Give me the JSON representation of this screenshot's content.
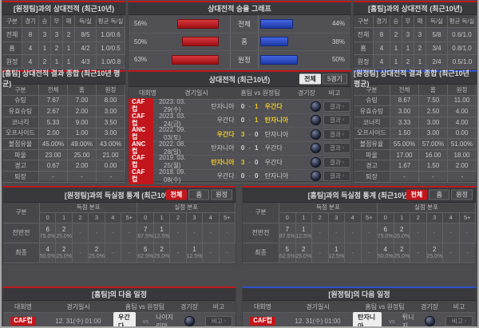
{
  "colors": {
    "red": "#c0181e",
    "blue": "#2f52cc",
    "yellow": "#e9c427",
    "badge_red": "#c3161c"
  },
  "h2h_home": {
    "title": "[원정팀]과의 상대전적 (최근10년)",
    "headers": [
      "구분",
      "경기",
      "승",
      "무",
      "패",
      "득/실",
      "평균 득/실"
    ],
    "rows": [
      {
        "label": "전체",
        "cells": [
          "8",
          "3",
          "3",
          "2",
          "8/5",
          "1.0/0.6"
        ]
      },
      {
        "label": "홈",
        "cells": [
          "4",
          "1",
          "2",
          "1",
          "4/2",
          "1.0/0.5"
        ]
      },
      {
        "label": "원정",
        "cells": [
          "4",
          "2",
          "1",
          "1",
          "4/3",
          "1.0/0.8"
        ]
      }
    ]
  },
  "winrate_graph": {
    "title": "상대전적 승율 그래프",
    "chart": {
      "type": "bar",
      "categories": [
        "전체",
        "홈",
        "원정"
      ],
      "series": [
        {
          "name": "home-red",
          "color": "#c0181e",
          "values": [
            56,
            50,
            63
          ]
        },
        {
          "name": "away-blue",
          "color": "#2f52cc",
          "values": [
            44,
            38,
            50
          ]
        }
      ],
      "unit": "%"
    },
    "rows": [
      {
        "label": "전체",
        "left": "56%",
        "right": "44%"
      },
      {
        "label": "홈",
        "left": "50%",
        "right": "38%"
      },
      {
        "label": "원정",
        "left": "63%",
        "right": "50%"
      }
    ]
  },
  "h2h_away": {
    "title": "[홈팀]과의 상대전적 (최근10년)",
    "headers": [
      "구분",
      "경기",
      "승",
      "무",
      "패",
      "득/실",
      "평균 득/실"
    ],
    "rows": [
      {
        "label": "전체",
        "cells": [
          "8",
          "2",
          "3",
          "3",
          "5/8",
          "0.6/1.0"
        ]
      },
      {
        "label": "홈",
        "cells": [
          "4",
          "1",
          "1",
          "2",
          "3/4",
          "0.8/1.0"
        ]
      },
      {
        "label": "원정",
        "cells": [
          "4",
          "1",
          "2",
          "1",
          "2/4",
          "0.5/1.0"
        ]
      }
    ]
  },
  "summary_home": {
    "title": "[홈팀] 상대전적 결과 종합 (최근10년 평균)",
    "headers": [
      "구분",
      "전체",
      "홈",
      "원정"
    ],
    "rows": [
      {
        "label": "슈팅",
        "cells": [
          "7.67",
          "7.00",
          "8.00"
        ]
      },
      {
        "label": "유효슈팅",
        "cells": [
          "2.67",
          "2.00",
          "3.00"
        ]
      },
      {
        "label": "코너킥",
        "cells": [
          "5.33",
          "9.00",
          "3.50"
        ]
      },
      {
        "label": "오프사이드",
        "cells": [
          "2.00",
          "1.00",
          "3.00"
        ]
      },
      {
        "label": "볼점유율",
        "cells": [
          "45.00%",
          "49.00%",
          "43.00%"
        ]
      },
      {
        "label": "파울",
        "cells": [
          "23.00",
          "25.00",
          "21.00"
        ]
      },
      {
        "label": "경고",
        "cells": [
          "0.67",
          "2.00",
          "0.00"
        ]
      },
      {
        "label": "퇴장",
        "cells": [
          "-",
          "-",
          "-"
        ]
      }
    ]
  },
  "h2h_matches": {
    "title": "상대전적 (최근10년)",
    "tabs": [
      "전체",
      "5경기"
    ],
    "headers": [
      "대회명",
      "경기일시",
      "홈팀 vs 원정팀",
      "경기장",
      "비고"
    ],
    "result_button": "결과",
    "rows": [
      {
        "league": "CAF컵",
        "date": "2023. 03. 29(수)",
        "home": "탄자니아",
        "score_home": "0",
        "score_away": "1",
        "away": "우간다",
        "hl_home": false,
        "hl_away": true
      },
      {
        "league": "CAF컵",
        "date": "2023. 03. 24(금)",
        "home": "우간다",
        "score_home": "0",
        "score_away": "1",
        "away": "탄자니아",
        "hl_home": false,
        "hl_away": true
      },
      {
        "league": "ANC컵",
        "date": "2022. 09. 03(토)",
        "home": "우간다",
        "score_home": "3",
        "score_away": "0",
        "away": "탄자니아",
        "hl_home": true,
        "hl_away": false
      },
      {
        "league": "ANC컵",
        "date": "2022. 08. 28(일)",
        "home": "탄자니아",
        "score_home": "0",
        "score_away": "1",
        "away": "우간다",
        "hl_home": false,
        "hl_away": false
      },
      {
        "league": "CAF컵",
        "date": "2019. 03. 25(월)",
        "home": "탄자니아",
        "score_home": "3",
        "score_away": "0",
        "away": "우간다",
        "hl_home": true,
        "hl_away": false
      },
      {
        "league": "CAF컵",
        "date": "2018. 09. 08(수)",
        "home": "우간다",
        "score_home": "0",
        "score_away": "0",
        "away": "탄자니아",
        "hl_home": false,
        "hl_away": false
      }
    ]
  },
  "summary_away": {
    "title": "[원정팀] 상대전적 결과 종합 (최근10년 평균)",
    "headers": [
      "구분",
      "전체",
      "홈",
      "원정"
    ],
    "rows": [
      {
        "label": "슈팅",
        "cells": [
          "8.67",
          "7.50",
          "11.00"
        ]
      },
      {
        "label": "유효슈팅",
        "cells": [
          "3.00",
          "2.50",
          "4.00"
        ]
      },
      {
        "label": "코너킥",
        "cells": [
          "3.33",
          "3.00",
          "4.00"
        ]
      },
      {
        "label": "오프사이드",
        "cells": [
          "1.50",
          "3.00",
          "0.00"
        ]
      },
      {
        "label": "볼점유율",
        "cells": [
          "55.00%",
          "57.00%",
          "51.00%"
        ]
      },
      {
        "label": "파울",
        "cells": [
          "17.00",
          "16.00",
          "18.00"
        ]
      },
      {
        "label": "경고",
        "cells": [
          "1.67",
          "1.50",
          "2.00"
        ]
      },
      {
        "label": "퇴장",
        "cells": [
          "-",
          "-",
          "-"
        ]
      }
    ]
  },
  "goals_home": {
    "title": "[원정팀]과의 득실점 통계 (최근10년)",
    "tabs": [
      "전체",
      "홈",
      "원정"
    ],
    "row_header": "구분",
    "col_groups": [
      "득점 분포",
      "실점 분포"
    ],
    "bins": [
      "0",
      "1",
      "2",
      "3",
      "4",
      "5+"
    ],
    "rows": [
      {
        "label": "전반전",
        "scored": [
          {
            "n": "6",
            "p": "75.0%"
          },
          {
            "n": "2",
            "p": "25.0%"
          },
          null,
          null,
          null,
          null
        ],
        "conceded": [
          {
            "n": "7",
            "p": "87.5%"
          },
          {
            "n": "1",
            "p": "12.5%"
          },
          null,
          null,
          null,
          null
        ]
      },
      {
        "label": "최종",
        "scored": [
          {
            "n": "4",
            "p": "50.0%"
          },
          {
            "n": "2",
            "p": "25.0%"
          },
          null,
          {
            "n": "2",
            "p": "25.0%"
          },
          null,
          null
        ],
        "conceded": [
          {
            "n": "5",
            "p": "62.5%"
          },
          {
            "n": "2",
            "p": "25.0%"
          },
          null,
          {
            "n": "1",
            "p": "12.5%"
          },
          null,
          null
        ]
      }
    ]
  },
  "goals_away": {
    "title": "[홈팀]과의 득실점 통계 (최근10년)",
    "tabs": [
      "전체",
      "홈",
      "원정"
    ],
    "row_header": "구분",
    "col_groups": [
      "득점 분포",
      "실점 분포"
    ],
    "bins": [
      "0",
      "1",
      "2",
      "3",
      "4",
      "5+"
    ],
    "rows": [
      {
        "label": "전반전",
        "scored": [
          {
            "n": "7",
            "p": "87.5%"
          },
          {
            "n": "1",
            "p": "12.5%"
          },
          null,
          null,
          null,
          null
        ],
        "conceded": [
          {
            "n": "6",
            "p": "75.0%"
          },
          {
            "n": "2",
            "p": "25.0%"
          },
          null,
          null,
          null,
          null
        ]
      },
      {
        "label": "최종",
        "scored": [
          {
            "n": "5",
            "p": "62.5%"
          },
          {
            "n": "2",
            "p": "25.0%"
          },
          null,
          {
            "n": "1",
            "p": "12.5%"
          },
          null,
          null
        ],
        "conceded": [
          {
            "n": "4",
            "p": "50.0%"
          },
          {
            "n": "2",
            "p": "25.0%"
          },
          null,
          {
            "n": "2",
            "p": "25.0%"
          },
          null,
          null
        ]
      }
    ]
  },
  "schedule_home": {
    "title": "[홈팀]의 다음 일정",
    "headers": [
      "대회명",
      "경기일시",
      "홈팀 vs 원정팀",
      "경기장",
      "비고"
    ],
    "note_button": "비고",
    "row": {
      "league": "CAF컵",
      "datetime": "12. 31(수) 01:00",
      "home": "우간다",
      "away": "나이지리아",
      "boxed": "home"
    }
  },
  "schedule_away": {
    "title": "[원정팀]의 다음 일정",
    "headers": [
      "대회명",
      "경기일시",
      "홈팀 vs 원정팀",
      "경기장",
      "비고"
    ],
    "note_button": "비고",
    "row": {
      "league": "CAF컵",
      "datetime": "12. 31(수) 01:00",
      "home": "탄자니아",
      "away": "튀니지",
      "boxed": "home"
    }
  }
}
